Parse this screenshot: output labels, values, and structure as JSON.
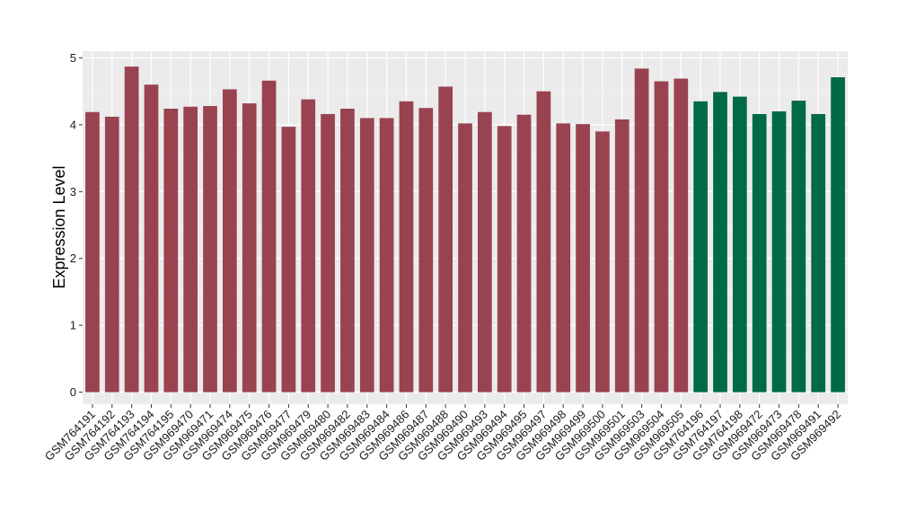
{
  "chart_data": {
    "type": "bar",
    "title": "",
    "xlabel": "",
    "ylabel": "Expression Level",
    "ylim": [
      -0.18,
      5.1
    ],
    "yticks": [
      0,
      1,
      2,
      3,
      4,
      5
    ],
    "grid": true,
    "legend": "none",
    "colors": {
      "panel": "#EBEBEB",
      "grid_major": "#FFFFFF",
      "grid_minor": "#F5F5F5",
      "group1": "#9A4350",
      "group2": "#006A46"
    },
    "categories": [
      "GSM764191",
      "GSM764192",
      "GSM764193",
      "GSM764194",
      "GSM764195",
      "GSM969470",
      "GSM969471",
      "GSM969474",
      "GSM969475",
      "GSM969476",
      "GSM969477",
      "GSM969479",
      "GSM969480",
      "GSM969482",
      "GSM969483",
      "GSM969484",
      "GSM969486",
      "GSM969487",
      "GSM969488",
      "GSM969490",
      "GSM969493",
      "GSM969494",
      "GSM969495",
      "GSM969497",
      "GSM969498",
      "GSM969499",
      "GSM969500",
      "GSM969501",
      "GSM969503",
      "GSM969504",
      "GSM969505",
      "GSM764196",
      "GSM764197",
      "GSM764198",
      "GSM969472",
      "GSM969473",
      "GSM969478",
      "GSM969491",
      "GSM969492"
    ],
    "values": [
      4.19,
      4.12,
      4.87,
      4.6,
      4.24,
      4.27,
      4.28,
      4.53,
      4.32,
      4.66,
      3.97,
      4.38,
      4.16,
      4.24,
      4.1,
      4.1,
      4.35,
      4.25,
      4.57,
      4.02,
      4.19,
      3.98,
      4.15,
      4.5,
      4.02,
      4.01,
      3.9,
      4.08,
      4.84,
      4.65,
      4.69,
      4.35,
      4.49,
      4.42,
      4.16,
      4.2,
      4.36,
      4.16,
      4.71
    ],
    "groups": [
      1,
      1,
      1,
      1,
      1,
      1,
      1,
      1,
      1,
      1,
      1,
      1,
      1,
      1,
      1,
      1,
      1,
      1,
      1,
      1,
      1,
      1,
      1,
      1,
      1,
      1,
      1,
      1,
      1,
      1,
      1,
      2,
      2,
      2,
      2,
      2,
      2,
      2,
      2
    ]
  }
}
